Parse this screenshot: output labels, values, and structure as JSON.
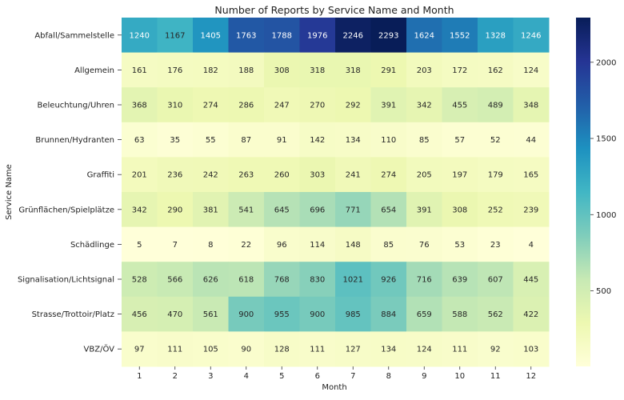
{
  "chart_data": {
    "type": "heatmap",
    "title": "Number of Reports by Service Name and Month",
    "xlabel": "Month",
    "ylabel": "Service Name",
    "x": [
      "1",
      "2",
      "3",
      "4",
      "5",
      "6",
      "7",
      "8",
      "9",
      "10",
      "11",
      "12"
    ],
    "y": [
      "Abfall/Sammelstelle",
      "Allgemein",
      "Beleuchtung/Uhren",
      "Brunnen/Hydranten",
      "Graffiti",
      "Grünflächen/Spielplätze",
      "Schädlinge",
      "Signalisation/Lichtsignal",
      "Strasse/Trottoir/Platz",
      "VBZ/ÖV"
    ],
    "values": [
      [
        1240,
        1167,
        1405,
        1763,
        1788,
        1976,
        2246,
        2293,
        1624,
        1552,
        1328,
        1246
      ],
      [
        161,
        176,
        182,
        188,
        308,
        318,
        318,
        291,
        203,
        172,
        162,
        124
      ],
      [
        368,
        310,
        274,
        286,
        247,
        270,
        292,
        391,
        342,
        455,
        489,
        348
      ],
      [
        63,
        35,
        55,
        87,
        91,
        142,
        134,
        110,
        85,
        57,
        52,
        44
      ],
      [
        201,
        236,
        242,
        263,
        260,
        303,
        241,
        274,
        205,
        197,
        179,
        165
      ],
      [
        342,
        290,
        381,
        541,
        645,
        696,
        771,
        654,
        391,
        308,
        252,
        239
      ],
      [
        5,
        7,
        8,
        22,
        96,
        114,
        148,
        85,
        76,
        53,
        23,
        4
      ],
      [
        528,
        566,
        626,
        618,
        768,
        830,
        1021,
        926,
        716,
        639,
        607,
        445
      ],
      [
        456,
        470,
        561,
        900,
        955,
        900,
        985,
        884,
        659,
        588,
        562,
        422
      ],
      [
        97,
        111,
        105,
        90,
        128,
        111,
        127,
        134,
        124,
        111,
        92,
        103
      ]
    ],
    "colormap": "YlGnBu",
    "vmin": 4,
    "vmax": 2293,
    "colorbar_ticks": [
      500,
      1000,
      1500,
      2000
    ],
    "annotations": true
  }
}
